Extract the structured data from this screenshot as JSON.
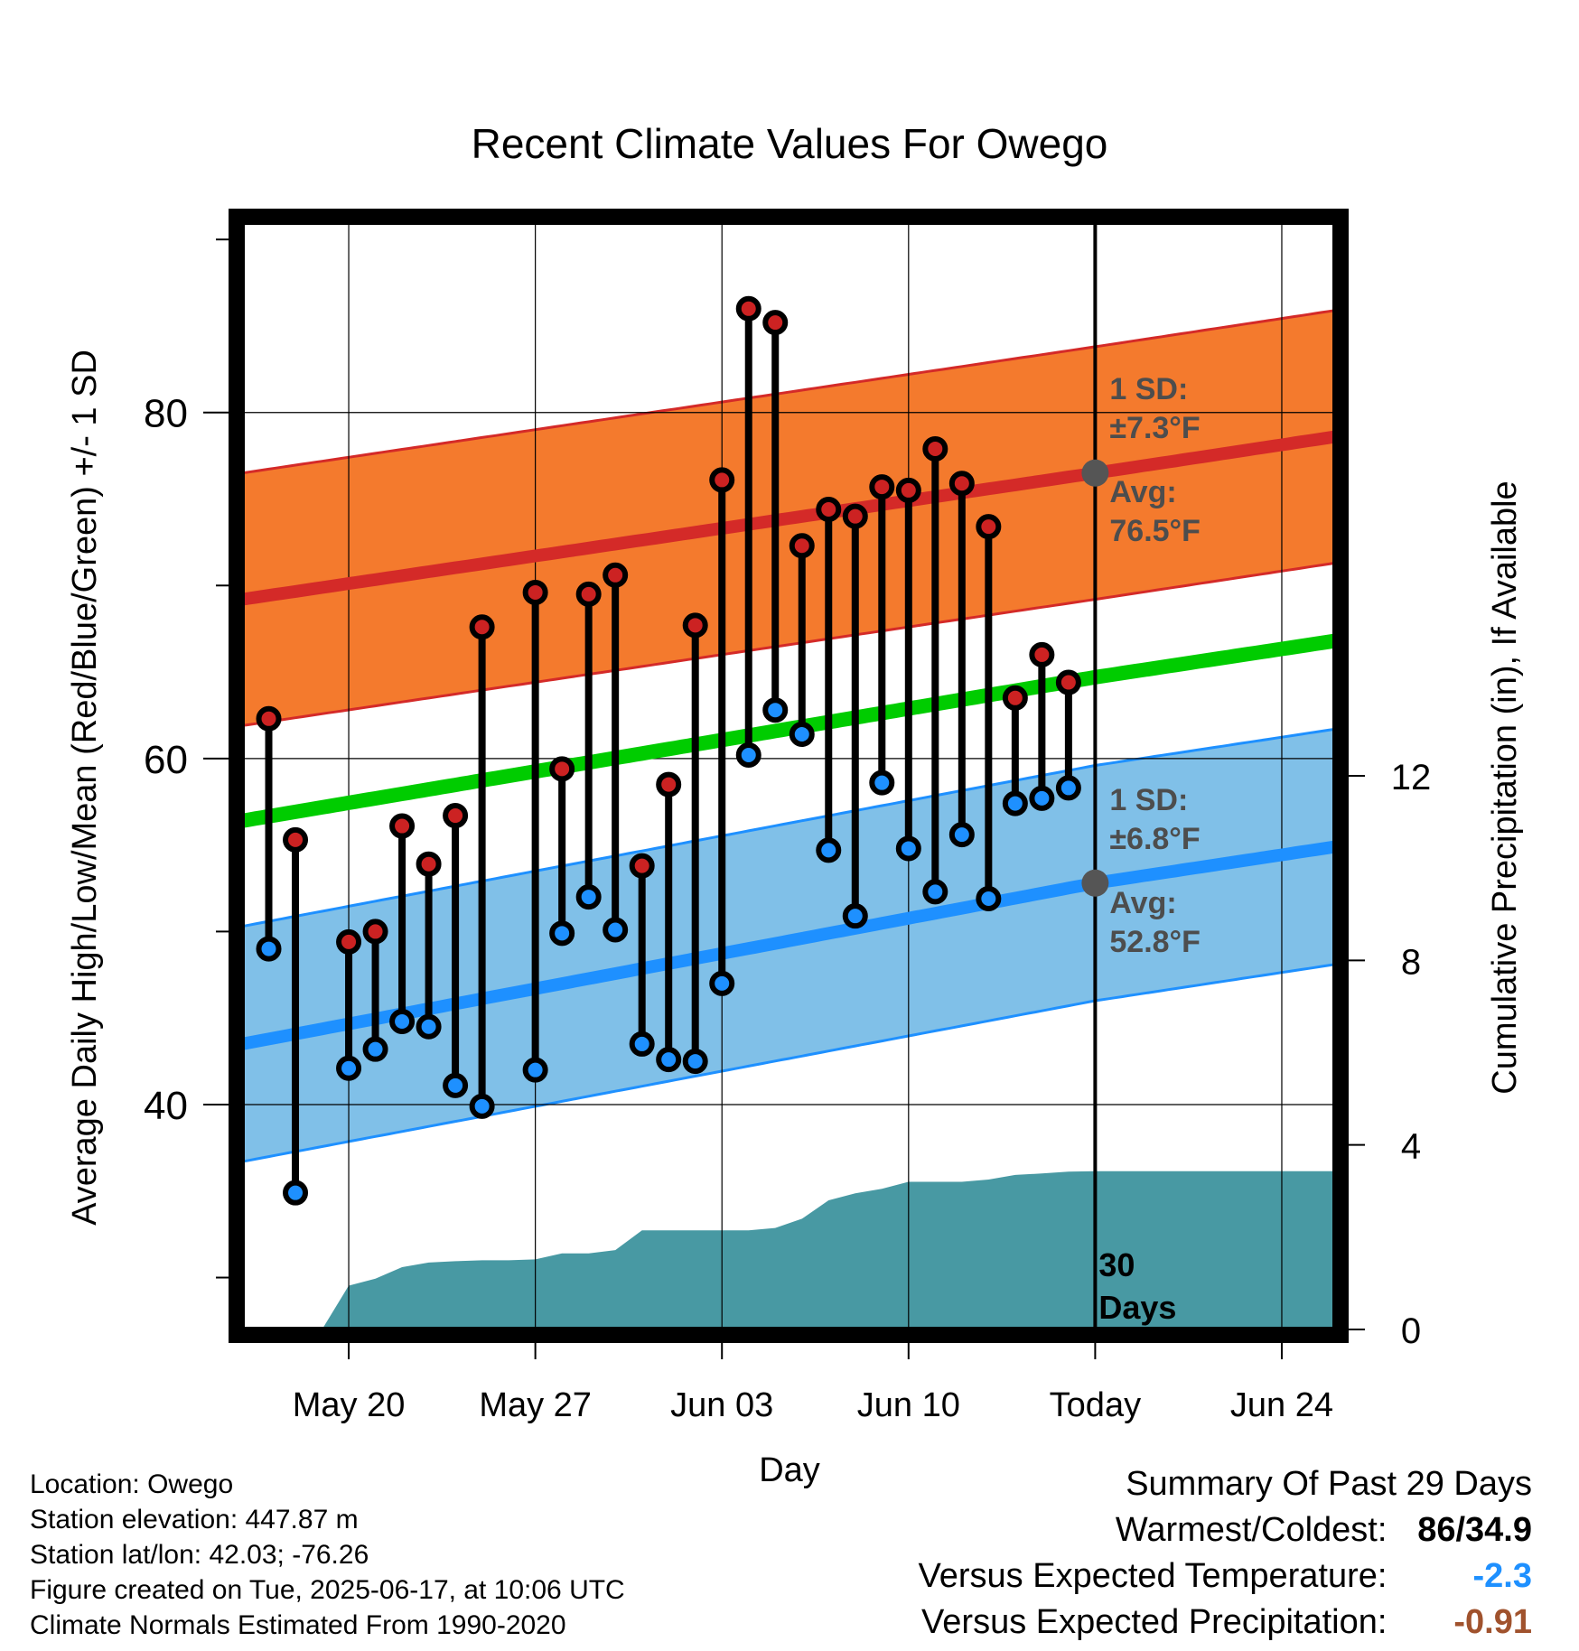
{
  "chart_data": {
    "type": "line",
    "title": "Recent Climate Values For Owego",
    "xlabel": "Day",
    "ylabel": "Average Daily High/Low/Mean (Red/Blue/Green) +/- 1 SD",
    "y2label": "Cumulative Precipitation (in), If Available",
    "ylim": [
      27,
      91
    ],
    "y2lim": [
      0,
      24
    ],
    "yticks": [
      40,
      60,
      80
    ],
    "y2ticks": [
      0,
      4,
      8,
      12
    ],
    "xlim": [
      "2025-05-16",
      "2025-06-26"
    ],
    "xticks": [
      {
        "date": "2025-05-20",
        "label": "May 20"
      },
      {
        "date": "2025-05-27",
        "label": "May 27"
      },
      {
        "date": "2025-06-03",
        "label": "Jun 03"
      },
      {
        "date": "2025-06-10",
        "label": "Jun 10"
      },
      {
        "date": "2025-06-17",
        "label": "Today"
      },
      {
        "date": "2025-06-24",
        "label": "Jun 24"
      }
    ],
    "today": "2025-06-17",
    "grid": true,
    "colors": {
      "high_band": "#f47a2d",
      "high_mean": "#d42a28",
      "low_band": "#80c0e8",
      "low_mean": "#1e90ff",
      "mean": "#00cc00",
      "precip": "#4899a3",
      "high_dot": "#cc2222",
      "low_dot": "#1e90ff",
      "annotation": "#4d4d4d",
      "vs_temp": "#1e90ff",
      "vs_precip": "#a0522d"
    },
    "normals": {
      "x": [
        "2025-05-16",
        "2025-06-17",
        "2025-06-26"
      ],
      "high_avg": [
        69.2,
        76.5,
        78.6
      ],
      "high_sd": 7.3,
      "low_avg": [
        43.5,
        52.8,
        54.9
      ],
      "low_sd": 6.8,
      "mean_avg": [
        56.4,
        64.7,
        66.8
      ]
    },
    "daily": {
      "dates": [
        "2025-05-17",
        "2025-05-18",
        "2025-05-19",
        "2025-05-20",
        "2025-05-21",
        "2025-05-22",
        "2025-05-23",
        "2025-05-24",
        "2025-05-25",
        "2025-05-26",
        "2025-05-27",
        "2025-05-28",
        "2025-05-29",
        "2025-05-30",
        "2025-05-31",
        "2025-06-01",
        "2025-06-02",
        "2025-06-03",
        "2025-06-04",
        "2025-06-05",
        "2025-06-06",
        "2025-06-07",
        "2025-06-08",
        "2025-06-09",
        "2025-06-10",
        "2025-06-11",
        "2025-06-12",
        "2025-06-13",
        "2025-06-14",
        "2025-06-15",
        "2025-06-16"
      ],
      "high": [
        62.3,
        55.3,
        null,
        49.4,
        50.0,
        56.1,
        53.9,
        56.7,
        67.6,
        null,
        69.6,
        59.4,
        69.5,
        70.6,
        53.8,
        58.5,
        67.7,
        76.1,
        86.0,
        85.2,
        72.3,
        74.4,
        74.0,
        75.7,
        75.5,
        77.9,
        75.9,
        73.4,
        63.5,
        66.0,
        64.4
      ],
      "low": [
        49.0,
        34.9,
        null,
        42.1,
        43.2,
        44.8,
        44.5,
        41.1,
        39.9,
        null,
        42.0,
        49.9,
        52.0,
        50.1,
        43.5,
        42.6,
        42.5,
        47.0,
        60.2,
        62.8,
        61.4,
        54.7,
        50.9,
        58.6,
        54.8,
        52.3,
        55.6,
        51.9,
        57.4,
        57.7,
        58.3
      ]
    },
    "precip": {
      "dates": [
        "2025-05-19",
        "2025-05-20",
        "2025-05-21",
        "2025-05-22",
        "2025-05-23",
        "2025-05-24",
        "2025-05-25",
        "2025-05-26",
        "2025-05-27",
        "2025-05-28",
        "2025-05-29",
        "2025-05-30",
        "2025-05-31",
        "2025-06-01",
        "2025-06-02",
        "2025-06-03",
        "2025-06-04",
        "2025-06-05",
        "2025-06-06",
        "2025-06-07",
        "2025-06-08",
        "2025-06-09",
        "2025-06-10",
        "2025-06-11",
        "2025-06-12",
        "2025-06-13",
        "2025-06-14",
        "2025-06-15",
        "2025-06-16",
        "2025-06-17",
        "2025-06-26"
      ],
      "cumulative": [
        0.0,
        0.95,
        1.1,
        1.35,
        1.45,
        1.48,
        1.5,
        1.5,
        1.52,
        1.65,
        1.65,
        1.72,
        2.15,
        2.15,
        2.15,
        2.15,
        2.15,
        2.2,
        2.4,
        2.8,
        2.95,
        3.05,
        3.2,
        3.2,
        3.2,
        3.25,
        3.35,
        3.38,
        3.42,
        3.43,
        3.43
      ]
    },
    "annotations": {
      "high_sd_label": "1 SD:",
      "high_sd_value": "±7.3°F",
      "high_avg_label": "Avg:",
      "high_avg_value": "76.5°F",
      "low_sd_label": "1 SD:",
      "low_sd_value": "±6.8°F",
      "low_avg_label": "Avg:",
      "low_avg_value": "52.8°F",
      "days_number": "30",
      "days_word": "Days"
    }
  },
  "info": {
    "location": "Location: Owego",
    "elevation": "Station elevation: 447.87 m",
    "latlon": "Station lat/lon: 42.03; -76.26",
    "created": "Figure created on Tue, 2025-06-17, at 10:06 UTC",
    "normals": "Climate Normals Estimated From 1990-2020"
  },
  "summary": {
    "title": "Summary Of Past 29 Days",
    "warm_cold_label": "Warmest/Coldest:",
    "warm_cold_value": "86/34.9",
    "vs_temp_label": "Versus Expected Temperature:",
    "vs_temp_value": "-2.3",
    "vs_precip_label": "Versus Expected Precipitation:",
    "vs_precip_value": "-0.91"
  }
}
